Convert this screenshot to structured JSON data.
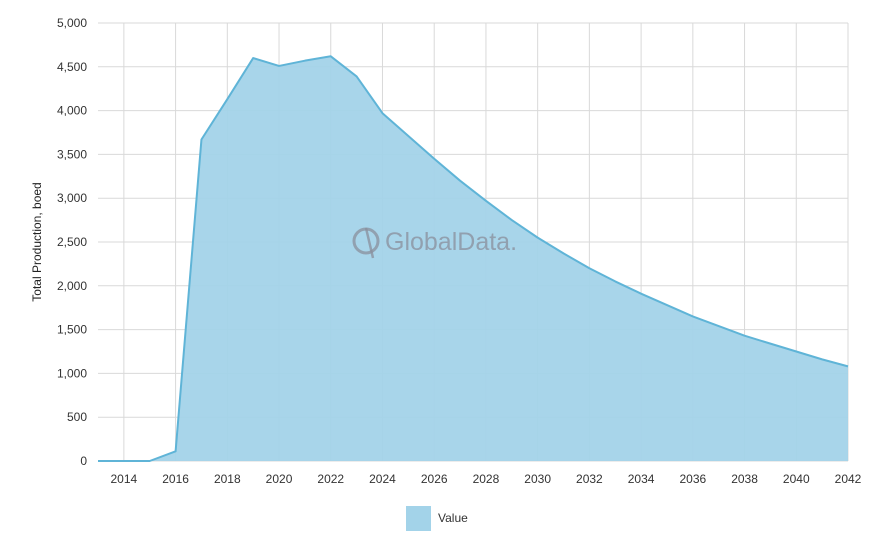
{
  "chart_data": {
    "type": "area",
    "title": "",
    "xlabel": "",
    "ylabel": "Total Production, boed",
    "x_ticks": [
      "2014",
      "2016",
      "2018",
      "2020",
      "2022",
      "2024",
      "2026",
      "2028",
      "2030",
      "2032",
      "2034",
      "2036",
      "2038",
      "2040",
      "2042"
    ],
    "y_ticks": [
      "0",
      "500",
      "1,000",
      "1,500",
      "2,000",
      "2,500",
      "3,000",
      "3,500",
      "4,000",
      "4,500",
      "5,000"
    ],
    "xlim": [
      2013,
      2042
    ],
    "ylim": [
      0,
      5000
    ],
    "grid": true,
    "legend_position": "bottom",
    "series": [
      {
        "name": "Value",
        "color": "#a3d3e9",
        "line_color": "#5fb4d7",
        "x": [
          2013,
          2014,
          2015,
          2016,
          2017,
          2018,
          2019,
          2020,
          2021,
          2022,
          2023,
          2024,
          2025,
          2026,
          2027,
          2028,
          2029,
          2030,
          2031,
          2032,
          2033,
          2034,
          2035,
          2036,
          2037,
          2038,
          2039,
          2040,
          2041,
          2042
        ],
        "values": [
          0,
          0,
          0,
          110,
          3670,
          4130,
          4600,
          4510,
          4570,
          4620,
          4390,
          3970,
          3710,
          3450,
          3200,
          2970,
          2750,
          2550,
          2370,
          2200,
          2050,
          1910,
          1780,
          1650,
          1540,
          1430,
          1340,
          1250,
          1160,
          1080
        ]
      }
    ]
  },
  "watermark": {
    "text": "GlobalData."
  },
  "legend": {
    "label": "Value"
  }
}
